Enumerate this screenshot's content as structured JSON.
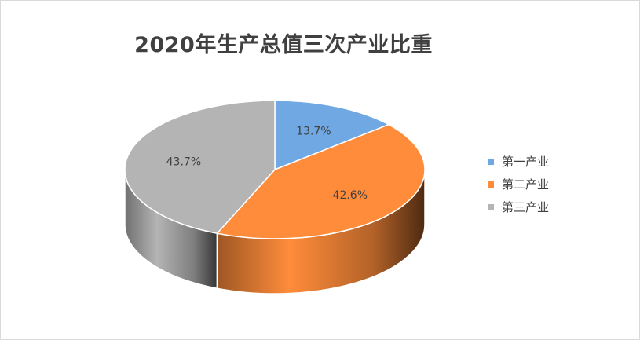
{
  "chart_data": {
    "type": "pie",
    "title": "2020年生产总值三次产业比重",
    "categories": [
      "第一产业",
      "第二产业",
      "第三产业"
    ],
    "values": [
      13.7,
      42.6,
      43.7
    ],
    "labels": [
      "13.7%",
      "42.6%",
      "43.7%"
    ],
    "colors": [
      "#6fa8e3",
      "#ff8c3a",
      "#b4b4b4"
    ],
    "legend_position": "right",
    "style": "3d"
  }
}
